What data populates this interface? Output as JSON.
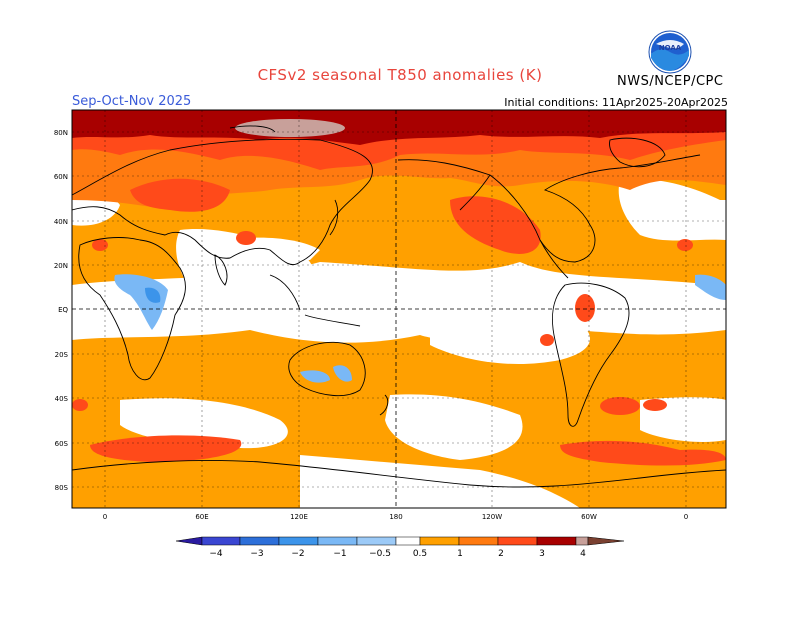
{
  "header": {
    "title": "CFSv2 seasonal T850 anomalies (K)",
    "season": "Sep-Oct-Nov 2025",
    "initial_conditions": "Initial conditions: 11Apr2025-20Apr2025",
    "agency": "NWS/NCEP/CPC",
    "logo_text": "NOAA"
  },
  "map": {
    "lat_labels": [
      "80N",
      "60N",
      "40N",
      "20N",
      "EQ",
      "20S",
      "40S",
      "60S",
      "80S"
    ],
    "lon_labels": [
      "0",
      "60E",
      "120E",
      "180",
      "120W",
      "60W",
      "0"
    ]
  },
  "legend": {
    "tick_labels": [
      "−4",
      "−3",
      "−2",
      "−1",
      "−0.5",
      "0.5",
      "1",
      "2",
      "3",
      "4"
    ],
    "colors": [
      "#2a1aa0",
      "#3a46d2",
      "#2d6fd9",
      "#3c94ea",
      "#7ab8f5",
      "#ffffff",
      "#ffa000",
      "#ff7a10",
      "#ff4a1a",
      "#a80000",
      "#c8a09a",
      "#7a4030"
    ]
  }
}
